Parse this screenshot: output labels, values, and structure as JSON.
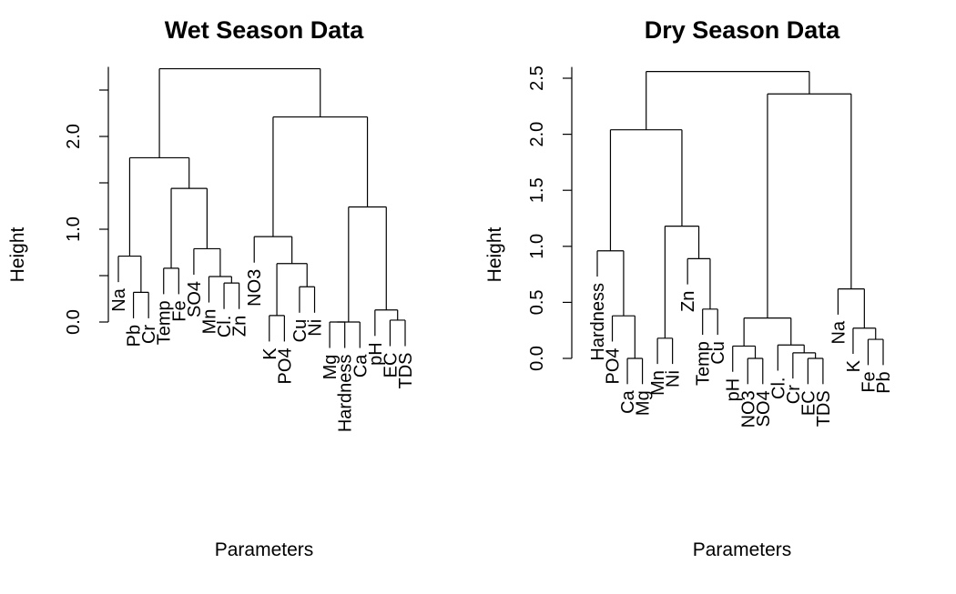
{
  "chart_data": [
    {
      "type": "dendrogram",
      "title": "Wet Season Data",
      "xlabel": "Parameters",
      "ylabel": "Height",
      "ylim": [
        0,
        2.75
      ],
      "yticks": [
        0.0,
        1.0,
        2.0
      ],
      "ytick_labels": [
        "0.0",
        "1.0",
        "2.0"
      ],
      "leaves": [
        "Na",
        "Pb",
        "Cr",
        "Temp",
        "Fe",
        "SO4",
        "Mn",
        "Cl.",
        "Zn",
        "NO3",
        "K",
        "PO4",
        "Cu",
        "Ni",
        "Mg",
        "Hardness",
        "Ca",
        "pH",
        "EC",
        "TDS"
      ],
      "merges": [
        {
          "left": "Pb",
          "right": "Cr",
          "height": 0.32
        },
        {
          "left": "Na",
          "right": 0,
          "height": 0.71
        },
        {
          "left": "Temp",
          "right": "Fe",
          "height": 0.58
        },
        {
          "left": "Cl.",
          "right": "Zn",
          "height": 0.42
        },
        {
          "left": "Mn",
          "right": 3,
          "height": 0.49
        },
        {
          "left": "SO4",
          "right": 4,
          "height": 0.79
        },
        {
          "left": 2,
          "right": 5,
          "height": 1.44
        },
        {
          "left": 1,
          "right": 6,
          "height": 1.77
        },
        {
          "left": "Cu",
          "right": "Ni",
          "height": 0.38
        },
        {
          "left": "K",
          "right": "PO4",
          "height": 0.07
        },
        {
          "left": 9,
          "right": 8,
          "height": 0.63
        },
        {
          "left": "NO3",
          "right": 10,
          "height": 0.92
        },
        {
          "left": "Mg",
          "right": "Hardness",
          "height": 0.0
        },
        {
          "left": 12,
          "right": "Ca",
          "height": 0.0
        },
        {
          "left": "EC",
          "right": "TDS",
          "height": 0.02
        },
        {
          "left": "pH",
          "right": 14,
          "height": 0.13
        },
        {
          "left": 13,
          "right": 15,
          "height": 1.24
        },
        {
          "left": 11,
          "right": 16,
          "height": 2.21
        },
        {
          "left": 7,
          "right": 17,
          "height": 2.73
        }
      ]
    },
    {
      "type": "dendrogram",
      "title": "Dry Season Data",
      "xlabel": "Parameters",
      "ylabel": "Height",
      "ylim": [
        0,
        2.6
      ],
      "yticks": [
        0.0,
        0.5,
        1.0,
        1.5,
        2.0,
        2.5
      ],
      "ytick_labels": [
        "0.0",
        "0.5",
        "1.0",
        "1.5",
        "2.0",
        "2.5"
      ],
      "leaves": [
        "Hardness",
        "PO4",
        "Ca",
        "Mg",
        "Mn",
        "Ni",
        "Zn",
        "Temp",
        "Cu",
        "pH",
        "NO3",
        "SO4",
        "Cl.",
        "Cr",
        "EC",
        "TDS",
        "Na",
        "K",
        "Fe",
        "Pb"
      ],
      "merges": [
        {
          "left": "Ca",
          "right": "Mg",
          "height": 0.0
        },
        {
          "left": "PO4",
          "right": 0,
          "height": 0.38
        },
        {
          "left": "Hardness",
          "right": 1,
          "height": 0.96
        },
        {
          "left": "Mn",
          "right": "Ni",
          "height": 0.18
        },
        {
          "left": "Temp",
          "right": "Cu",
          "height": 0.44
        },
        {
          "left": "Zn",
          "right": 4,
          "height": 0.89
        },
        {
          "left": 3,
          "right": 5,
          "height": 1.18
        },
        {
          "left": 2,
          "right": 6,
          "height": 2.04
        },
        {
          "left": "EC",
          "right": "TDS",
          "height": 0.0
        },
        {
          "left": "Cr",
          "right": 8,
          "height": 0.05
        },
        {
          "left": "Cl.",
          "right": 9,
          "height": 0.12
        },
        {
          "left": "NO3",
          "right": "SO4",
          "height": 0.0
        },
        {
          "left": "pH",
          "right": 11,
          "height": 0.11
        },
        {
          "left": 12,
          "right": 10,
          "height": 0.36
        },
        {
          "left": "Fe",
          "right": "Pb",
          "height": 0.17
        },
        {
          "left": "K",
          "right": 14,
          "height": 0.27
        },
        {
          "left": "Na",
          "right": 15,
          "height": 0.62
        },
        {
          "left": 13,
          "right": 16,
          "height": 2.36
        },
        {
          "left": 7,
          "right": 17,
          "height": 2.56
        }
      ]
    }
  ]
}
